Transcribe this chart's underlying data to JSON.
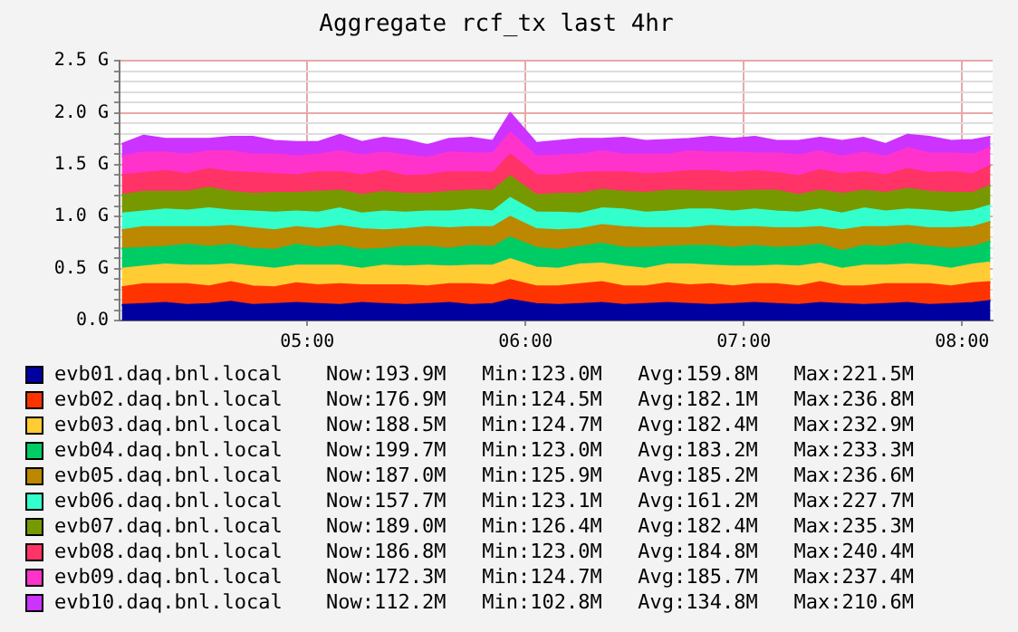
{
  "chart_data": {
    "type": "area",
    "title": "Aggregate rcf_tx last 4hr",
    "stacked": true,
    "marker": "none",
    "grid": true,
    "legend": "bottom",
    "x": [
      4.15,
      4.25,
      4.35,
      4.45,
      4.55,
      4.65,
      4.75,
      4.85,
      4.95,
      5.05,
      5.15,
      5.25,
      5.35,
      5.45,
      5.55,
      5.65,
      5.75,
      5.85,
      5.93,
      6.05,
      6.15,
      6.25,
      6.35,
      6.45,
      6.55,
      6.65,
      6.75,
      6.85,
      6.95,
      7.05,
      7.15,
      7.25,
      7.35,
      7.45,
      7.55,
      7.65,
      7.75,
      7.85,
      7.95,
      8.05,
      8.13
    ],
    "xlim": [
      4.14,
      8.14
    ],
    "xticks": [
      {
        "value": 5,
        "label": "05:00"
      },
      {
        "value": 6,
        "label": "06:00"
      },
      {
        "value": 7,
        "label": "07:00"
      },
      {
        "value": 8,
        "label": "08:00"
      }
    ],
    "ylim": [
      0,
      2.5
    ],
    "yticks": [
      {
        "value": 0,
        "label": "0.0"
      },
      {
        "value": 0.1,
        "label": null
      },
      {
        "value": 0.2,
        "label": null
      },
      {
        "value": 0.3,
        "label": null
      },
      {
        "value": 0.4,
        "label": null
      },
      {
        "value": 0.5,
        "label": "0.5 G"
      },
      {
        "value": 0.6,
        "label": null
      },
      {
        "value": 0.7,
        "label": null
      },
      {
        "value": 0.8,
        "label": null
      },
      {
        "value": 0.9,
        "label": null
      },
      {
        "value": 1.0,
        "label": "1.0 G"
      },
      {
        "value": 1.1,
        "label": null
      },
      {
        "value": 1.2,
        "label": null
      },
      {
        "value": 1.3,
        "label": null
      },
      {
        "value": 1.4,
        "label": null
      },
      {
        "value": 1.5,
        "label": "1.5 G"
      },
      {
        "value": 1.6,
        "label": null
      },
      {
        "value": 1.7,
        "label": null
      },
      {
        "value": 1.8,
        "label": null
      },
      {
        "value": 1.9,
        "label": null
      },
      {
        "value": 2.0,
        "label": "2.0 G"
      },
      {
        "value": 2.1,
        "label": null
      },
      {
        "value": 2.2,
        "label": null
      },
      {
        "value": 2.3,
        "label": null
      },
      {
        "value": 2.4,
        "label": null
      },
      {
        "value": 2.5,
        "label": "2.5 G"
      }
    ],
    "series": [
      {
        "name": "evb01.daq.bnl.local",
        "color": "#0000a0",
        "values": [
          0.15,
          0.16,
          0.17,
          0.15,
          0.16,
          0.18,
          0.15,
          0.16,
          0.17,
          0.16,
          0.15,
          0.17,
          0.16,
          0.15,
          0.16,
          0.17,
          0.15,
          0.16,
          0.2,
          0.16,
          0.15,
          0.16,
          0.17,
          0.15,
          0.16,
          0.17,
          0.16,
          0.15,
          0.16,
          0.17,
          0.16,
          0.15,
          0.17,
          0.16,
          0.15,
          0.16,
          0.17,
          0.15,
          0.16,
          0.17,
          0.19
        ]
      },
      {
        "name": "evb02.daq.bnl.local",
        "color": "#ff3300",
        "values": [
          0.17,
          0.19,
          0.18,
          0.2,
          0.17,
          0.19,
          0.18,
          0.16,
          0.19,
          0.18,
          0.2,
          0.17,
          0.18,
          0.19,
          0.17,
          0.18,
          0.2,
          0.18,
          0.19,
          0.17,
          0.18,
          0.19,
          0.2,
          0.18,
          0.17,
          0.19,
          0.18,
          0.2,
          0.17,
          0.18,
          0.19,
          0.18,
          0.2,
          0.17,
          0.18,
          0.19,
          0.18,
          0.2,
          0.17,
          0.19,
          0.18
        ]
      },
      {
        "name": "evb03.daq.bnl.local",
        "color": "#ffcc33",
        "values": [
          0.18,
          0.17,
          0.19,
          0.18,
          0.2,
          0.17,
          0.19,
          0.18,
          0.17,
          0.19,
          0.18,
          0.16,
          0.19,
          0.18,
          0.2,
          0.17,
          0.18,
          0.19,
          0.2,
          0.18,
          0.17,
          0.19,
          0.18,
          0.19,
          0.17,
          0.18,
          0.2,
          0.18,
          0.19,
          0.17,
          0.18,
          0.19,
          0.18,
          0.17,
          0.2,
          0.18,
          0.19,
          0.18,
          0.17,
          0.18,
          0.19
        ]
      },
      {
        "name": "evb04.daq.bnl.local",
        "color": "#00cc66",
        "values": [
          0.19,
          0.18,
          0.17,
          0.2,
          0.18,
          0.19,
          0.17,
          0.18,
          0.2,
          0.17,
          0.19,
          0.18,
          0.16,
          0.19,
          0.18,
          0.17,
          0.19,
          0.18,
          0.21,
          0.19,
          0.18,
          0.17,
          0.19,
          0.18,
          0.2,
          0.17,
          0.18,
          0.19,
          0.18,
          0.2,
          0.17,
          0.19,
          0.18,
          0.17,
          0.19,
          0.18,
          0.2,
          0.18,
          0.19,
          0.17,
          0.2
        ]
      },
      {
        "name": "evb05.daq.bnl.local",
        "color": "#bb8800",
        "values": [
          0.18,
          0.2,
          0.19,
          0.17,
          0.19,
          0.18,
          0.2,
          0.19,
          0.17,
          0.18,
          0.19,
          0.2,
          0.18,
          0.17,
          0.19,
          0.2,
          0.18,
          0.19,
          0.2,
          0.18,
          0.19,
          0.17,
          0.18,
          0.2,
          0.19,
          0.18,
          0.17,
          0.19,
          0.2,
          0.18,
          0.19,
          0.18,
          0.17,
          0.2,
          0.18,
          0.19,
          0.17,
          0.18,
          0.2,
          0.19,
          0.19
        ]
      },
      {
        "name": "evb06.daq.bnl.local",
        "color": "#33ffcc",
        "values": [
          0.16,
          0.15,
          0.17,
          0.16,
          0.18,
          0.15,
          0.16,
          0.17,
          0.15,
          0.16,
          0.17,
          0.15,
          0.18,
          0.16,
          0.15,
          0.16,
          0.17,
          0.15,
          0.18,
          0.16,
          0.17,
          0.15,
          0.16,
          0.17,
          0.15,
          0.16,
          0.18,
          0.16,
          0.15,
          0.17,
          0.16,
          0.15,
          0.17,
          0.16,
          0.18,
          0.15,
          0.16,
          0.17,
          0.15,
          0.16,
          0.16
        ]
      },
      {
        "name": "evb07.daq.bnl.local",
        "color": "#779900",
        "values": [
          0.18,
          0.19,
          0.17,
          0.18,
          0.2,
          0.18,
          0.17,
          0.19,
          0.18,
          0.2,
          0.17,
          0.18,
          0.19,
          0.18,
          0.17,
          0.19,
          0.18,
          0.2,
          0.21,
          0.17,
          0.18,
          0.19,
          0.18,
          0.17,
          0.19,
          0.2,
          0.18,
          0.17,
          0.19,
          0.18,
          0.2,
          0.17,
          0.18,
          0.19,
          0.17,
          0.18,
          0.2,
          0.18,
          0.19,
          0.17,
          0.19
        ]
      },
      {
        "name": "evb08.daq.bnl.local",
        "color": "#ff3366",
        "values": [
          0.19,
          0.18,
          0.2,
          0.17,
          0.18,
          0.19,
          0.2,
          0.18,
          0.17,
          0.19,
          0.18,
          0.19,
          0.2,
          0.17,
          0.18,
          0.19,
          0.18,
          0.17,
          0.21,
          0.19,
          0.18,
          0.2,
          0.17,
          0.19,
          0.18,
          0.17,
          0.19,
          0.2,
          0.18,
          0.19,
          0.17,
          0.18,
          0.2,
          0.19,
          0.18,
          0.17,
          0.19,
          0.18,
          0.2,
          0.18,
          0.19
        ]
      },
      {
        "name": "evb09.daq.bnl.local",
        "color": "#ff33cc",
        "values": [
          0.18,
          0.2,
          0.18,
          0.19,
          0.17,
          0.2,
          0.18,
          0.19,
          0.18,
          0.17,
          0.2,
          0.19,
          0.18,
          0.2,
          0.17,
          0.19,
          0.18,
          0.19,
          0.21,
          0.18,
          0.19,
          0.18,
          0.2,
          0.17,
          0.19,
          0.18,
          0.19,
          0.18,
          0.2,
          0.17,
          0.19,
          0.2,
          0.18,
          0.17,
          0.19,
          0.18,
          0.2,
          0.19,
          0.18,
          0.19,
          0.17
        ]
      },
      {
        "name": "evb10.daq.bnl.local",
        "color": "#cc33ff",
        "values": [
          0.12,
          0.16,
          0.13,
          0.15,
          0.12,
          0.14,
          0.17,
          0.13,
          0.14,
          0.12,
          0.16,
          0.13,
          0.14,
          0.15,
          0.12,
          0.13,
          0.15,
          0.12,
          0.19,
          0.13,
          0.14,
          0.15,
          0.12,
          0.16,
          0.13,
          0.14,
          0.12,
          0.15,
          0.13,
          0.16,
          0.12,
          0.14,
          0.13,
          0.15,
          0.14,
          0.12,
          0.13,
          0.16,
          0.12,
          0.14,
          0.11
        ]
      }
    ],
    "annotations": [
      "Now:193.9M   Min:123.0M   Avg:159.8M   Max:221.5M",
      "Now:176.9M   Min:124.5M   Avg:182.1M   Max:236.8M",
      "Now:188.5M   Min:124.7M   Avg:182.4M   Max:232.9M",
      "Now:199.7M   Min:123.0M   Avg:183.2M   Max:233.3M",
      "Now:187.0M   Min:125.9M   Avg:185.2M   Max:236.6M",
      "Now:157.7M   Min:123.1M   Avg:161.2M   Max:227.7M",
      "Now:189.0M   Min:126.4M   Avg:182.4M   Max:235.3M",
      "Now:186.8M   Min:123.0M   Avg:184.8M   Max:240.4M",
      "Now:172.3M   Min:124.7M   Avg:185.7M   Max:237.4M",
      "Now:112.2M   Min:102.8M   Avg:134.8M   Max:210.6M"
    ]
  }
}
